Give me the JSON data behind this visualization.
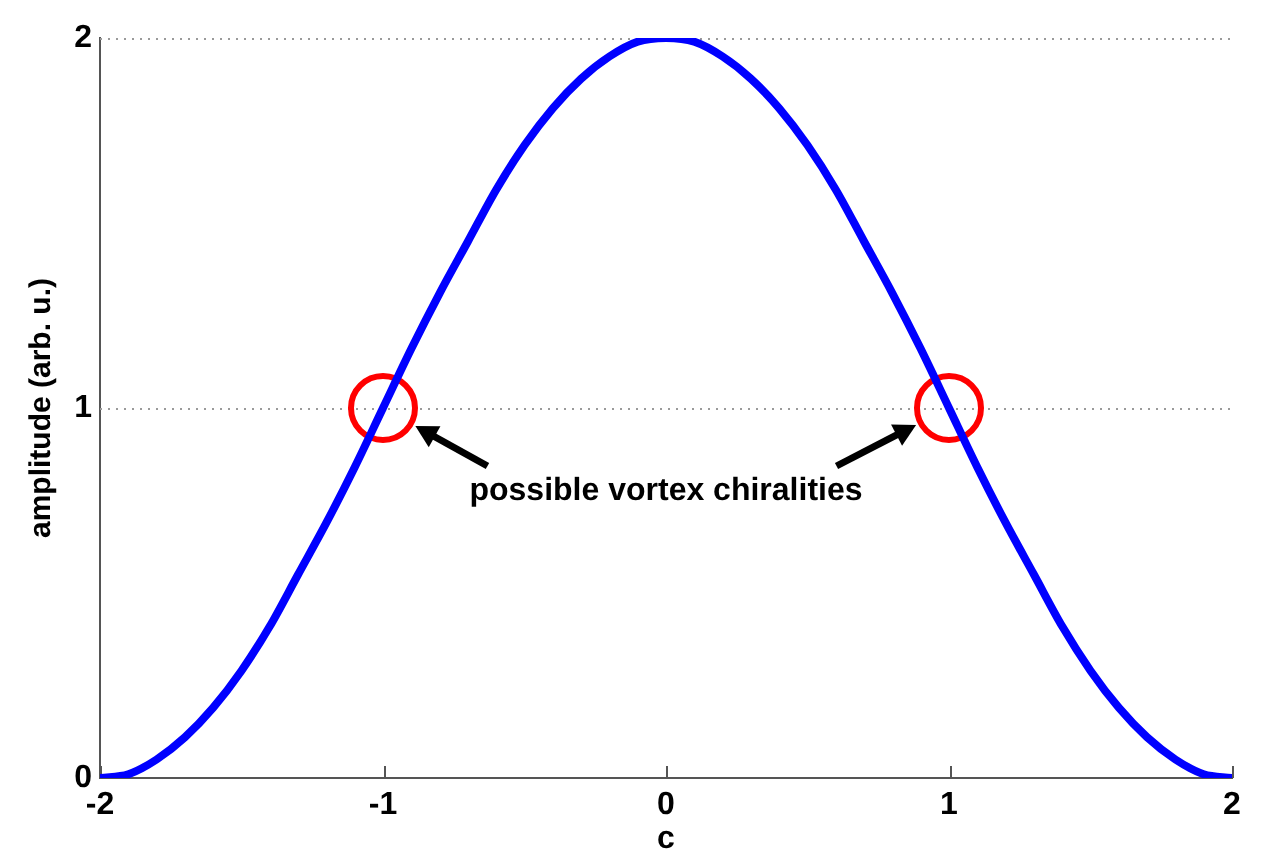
{
  "chart_data": {
    "type": "line",
    "xlabel": "c",
    "ylabel": "amplitude (arb. u.)",
    "xlim": [
      -2,
      2
    ],
    "xticks": [
      -2,
      -1,
      0,
      1,
      2
    ],
    "ylim": [
      0,
      2
    ],
    "yticks": [
      0,
      1,
      2
    ],
    "grid": "y",
    "annotations": [
      "possible vortex chiralities"
    ],
    "series": [
      {
        "color": "#0000ff",
        "x": [
          -2,
          -1.9,
          -1.8,
          -1.7,
          -1.6,
          -1.5,
          -1.4,
          -1.3,
          -1.2,
          -1.1,
          -1,
          -0.9,
          -0.8,
          -0.7,
          -0.6,
          -0.5,
          -0.4,
          -0.3,
          -0.2,
          -0.1,
          0,
          0.1,
          0.2,
          0.3,
          0.4,
          0.5,
          0.6,
          0.7,
          0.8,
          0.9,
          1,
          1.1,
          1.2,
          1.3,
          1.4,
          1.5,
          1.6,
          1.7,
          1.8,
          1.9,
          2
        ],
        "values": [
          0,
          0.01,
          0.05,
          0.11,
          0.19,
          0.29,
          0.41,
          0.55,
          0.69,
          0.84,
          1,
          1.16,
          1.31,
          1.45,
          1.59,
          1.71,
          1.81,
          1.89,
          1.95,
          1.99,
          2,
          1.99,
          1.95,
          1.89,
          1.81,
          1.71,
          1.59,
          1.45,
          1.31,
          1.16,
          1,
          0.84,
          0.69,
          0.55,
          0.41,
          0.29,
          0.19,
          0.11,
          0.05,
          0.01,
          0
        ]
      },
      {
        "type": "scatter",
        "color": "#ff0000",
        "x": [
          -1,
          1
        ],
        "values": [
          1,
          1
        ],
        "marker": "circle"
      }
    ]
  }
}
